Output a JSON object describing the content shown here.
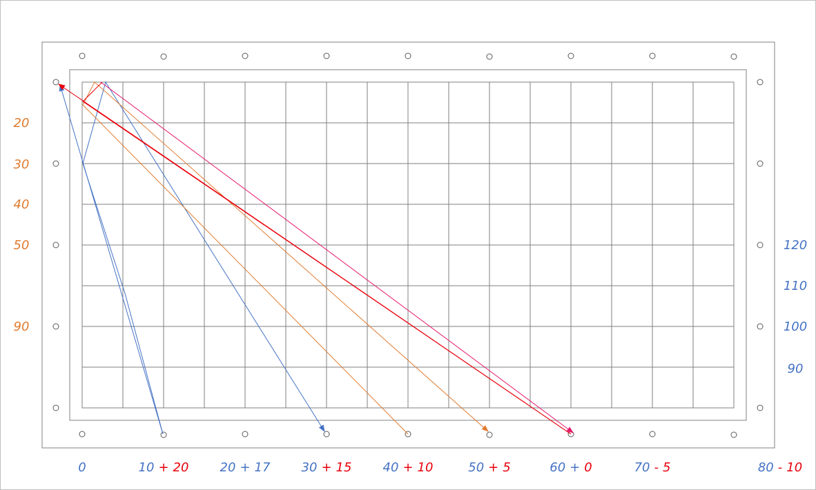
{
  "colors": {
    "orange": "#e07b2f",
    "blue": "#4472c4",
    "red": "#e8000b",
    "magenta": "#e6186d",
    "grid": "#7f7f7f",
    "frame": "#808080",
    "border": "#bfbfbf"
  },
  "left_labels": [
    {
      "id": "l20",
      "text": "20"
    },
    {
      "id": "l30",
      "text": "30"
    },
    {
      "id": "l40",
      "text": "40"
    },
    {
      "id": "l50",
      "text": "50"
    },
    {
      "id": "l90",
      "text": "90"
    }
  ],
  "right_labels": [
    {
      "id": "r120",
      "text": "120"
    },
    {
      "id": "r110",
      "text": "110"
    },
    {
      "id": "r100",
      "text": "100"
    },
    {
      "id": "r90",
      "text": "90"
    }
  ],
  "bottom_labels": [
    {
      "id": "b0",
      "base": "0",
      "op": "",
      "offset": ""
    },
    {
      "id": "b10",
      "base": "10",
      "op": "+",
      "offset": "20"
    },
    {
      "id": "b20",
      "base": "20",
      "op": "+",
      "offset": "17"
    },
    {
      "id": "b30",
      "base": "30",
      "op": "+",
      "offset": "15"
    },
    {
      "id": "b40",
      "base": "40",
      "op": "+",
      "offset": "10"
    },
    {
      "id": "b50",
      "base": "50",
      "op": "+",
      "offset": "5"
    },
    {
      "id": "b60",
      "base": "60",
      "op": "+",
      "offset": "0"
    },
    {
      "id": "b70",
      "base": "70",
      "op": "-",
      "offset": "5"
    },
    {
      "id": "b80",
      "base": "80",
      "op": "-",
      "offset": "10"
    }
  ]
}
